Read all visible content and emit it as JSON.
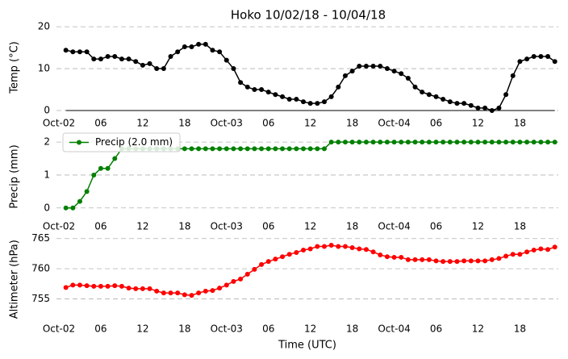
{
  "chart_data": [
    {
      "type": "line",
      "title": "Hoko 10/02/18 - 10/04/18",
      "ylabel": "Temp (°C)",
      "x": [
        1,
        2,
        3,
        4,
        5,
        6,
        7,
        8,
        9,
        10,
        11,
        12,
        13,
        14,
        15,
        16,
        17,
        18,
        19,
        20,
        21,
        22,
        23,
        24,
        25,
        26,
        27,
        28,
        29,
        30,
        31,
        32,
        33,
        34,
        35,
        36,
        37,
        38,
        39,
        40,
        41,
        42,
        43,
        44,
        45,
        46,
        47,
        48,
        49,
        50,
        51,
        52,
        53,
        54,
        55,
        56,
        57,
        58,
        59,
        60,
        61,
        62,
        63,
        64,
        65,
        66,
        67,
        68,
        69,
        70,
        71
      ],
      "series": [
        {
          "name": "Temp",
          "color": "#000000",
          "values": [
            14.4,
            14.0,
            14.0,
            14.0,
            12.3,
            12.3,
            12.9,
            12.9,
            12.3,
            12.3,
            11.7,
            10.8,
            11.2,
            10.0,
            10.0,
            12.9,
            14.0,
            15.2,
            15.2,
            15.8,
            15.8,
            14.4,
            14.0,
            12.0,
            10.0,
            6.7,
            5.6,
            5.0,
            5.0,
            4.4,
            3.8,
            3.3,
            2.7,
            2.7,
            2.1,
            1.7,
            1.7,
            2.1,
            3.3,
            5.6,
            8.3,
            9.4,
            10.6,
            10.6,
            10.6,
            10.6,
            10.0,
            9.4,
            8.8,
            7.7,
            5.6,
            4.4,
            3.8,
            3.3,
            2.7,
            2.1,
            1.7,
            1.7,
            1.2,
            0.6,
            0.6,
            0,
            0.6,
            3.8,
            8.3,
            11.7,
            12.3,
            12.9,
            12.9,
            12.9,
            11.7
          ]
        }
      ],
      "xlim": [
        0,
        71.5
      ],
      "xticks": [
        {
          "value": 0,
          "label": "Oct-02"
        },
        {
          "value": 6,
          "label": "06"
        },
        {
          "value": 12,
          "label": "12"
        },
        {
          "value": 18,
          "label": "18"
        },
        {
          "value": 24,
          "label": "Oct-03"
        },
        {
          "value": 30,
          "label": "06"
        },
        {
          "value": 36,
          "label": "12"
        },
        {
          "value": 42,
          "label": "18"
        },
        {
          "value": 48,
          "label": "Oct-04"
        },
        {
          "value": 54,
          "label": "06"
        },
        {
          "value": 60,
          "label": "12"
        },
        {
          "value": 66,
          "label": "18"
        }
      ],
      "ylim": [
        0,
        20.6
      ],
      "yticks": [
        0,
        10,
        20
      ],
      "grid": true
    },
    {
      "type": "line",
      "ylabel": "Precip (mm)",
      "legend": "upper left",
      "x": [
        1,
        2,
        3,
        4,
        5,
        6,
        7,
        8,
        9,
        10,
        11,
        12,
        13,
        14,
        15,
        16,
        17,
        18,
        19,
        20,
        21,
        22,
        23,
        24,
        25,
        26,
        27,
        28,
        29,
        30,
        31,
        32,
        33,
        34,
        35,
        36,
        37,
        38,
        39,
        40,
        41,
        42,
        43,
        44,
        45,
        46,
        47,
        48,
        49,
        50,
        51,
        52,
        53,
        54,
        55,
        56,
        57,
        58,
        59,
        60,
        61,
        62,
        63,
        64,
        65,
        66,
        67,
        68,
        69,
        70,
        71
      ],
      "series": [
        {
          "name": "Precip (2.0 mm)",
          "color": "#008000",
          "values": [
            0,
            0,
            0.2,
            0.5,
            1.0,
            1.2,
            1.2,
            1.5,
            1.8,
            1.8,
            1.8,
            1.8,
            1.8,
            1.8,
            1.8,
            1.8,
            1.8,
            1.8,
            1.8,
            1.8,
            1.8,
            1.8,
            1.8,
            1.8,
            1.8,
            1.8,
            1.8,
            1.8,
            1.8,
            1.8,
            1.8,
            1.8,
            1.8,
            1.8,
            1.8,
            1.8,
            1.8,
            1.8,
            2.0,
            2.0,
            2.0,
            2.0,
            2.0,
            2.0,
            2.0,
            2.0,
            2.0,
            2.0,
            2.0,
            2.0,
            2.0,
            2.0,
            2.0,
            2.0,
            2.0,
            2.0,
            2.0,
            2.0,
            2.0,
            2.0,
            2.0,
            2.0,
            2.0,
            2.0,
            2.0,
            2.0,
            2.0,
            2.0,
            2.0,
            2.0,
            2.0
          ]
        }
      ],
      "xlim": [
        0,
        71.5
      ],
      "xticks": [
        {
          "value": 0,
          "label": "Oct-02"
        },
        {
          "value": 6,
          "label": "06"
        },
        {
          "value": 12,
          "label": "12"
        },
        {
          "value": 18,
          "label": "18"
        },
        {
          "value": 24,
          "label": "Oct-03"
        },
        {
          "value": 30,
          "label": "06"
        },
        {
          "value": 36,
          "label": "12"
        },
        {
          "value": 42,
          "label": "18"
        },
        {
          "value": 48,
          "label": "Oct-04"
        },
        {
          "value": 54,
          "label": "06"
        },
        {
          "value": 60,
          "label": "12"
        },
        {
          "value": 66,
          "label": "18"
        }
      ],
      "ylim": [
        -0.3,
        2.2
      ],
      "yticks": [
        0,
        1,
        2
      ],
      "grid": true
    },
    {
      "type": "line",
      "ylabel": "Altimeter (hPa)",
      "xlabel": "Time (UTC)",
      "x": [
        1,
        2,
        3,
        4,
        5,
        6,
        7,
        8,
        9,
        10,
        11,
        12,
        13,
        14,
        15,
        16,
        17,
        18,
        19,
        20,
        21,
        22,
        23,
        24,
        25,
        26,
        27,
        28,
        29,
        30,
        31,
        32,
        33,
        34,
        35,
        36,
        37,
        38,
        39,
        40,
        41,
        42,
        43,
        44,
        45,
        46,
        47,
        48,
        49,
        50,
        51,
        52,
        53,
        54,
        55,
        56,
        57,
        58,
        59,
        60,
        61,
        62,
        63,
        64,
        65,
        66,
        67,
        68,
        69,
        70,
        71
      ],
      "series": [
        {
          "name": "Altimeter",
          "color": "#ff0000",
          "values": [
            756.9,
            757.3,
            757.3,
            757.2,
            757.1,
            757.1,
            757.1,
            757.2,
            757.1,
            756.8,
            756.7,
            756.7,
            756.7,
            756.3,
            756.0,
            756.0,
            756.0,
            755.7,
            755.6,
            756.0,
            756.3,
            756.4,
            756.8,
            757.3,
            757.9,
            758.3,
            759.1,
            759.9,
            760.7,
            761.2,
            761.6,
            762.0,
            762.4,
            762.7,
            763.1,
            763.3,
            763.7,
            763.7,
            763.9,
            763.7,
            763.7,
            763.5,
            763.3,
            763.2,
            762.8,
            762.3,
            762.0,
            761.9,
            761.9,
            761.5,
            761.5,
            761.5,
            761.5,
            761.3,
            761.2,
            761.2,
            761.2,
            761.3,
            761.3,
            761.3,
            761.3,
            761.5,
            761.7,
            762.1,
            762.4,
            762.4,
            762.8,
            763.1,
            763.3,
            763.2,
            763.6
          ]
        }
      ],
      "xlim": [
        0,
        71.5
      ],
      "xticks": [
        {
          "value": 0,
          "label": "Oct-02"
        },
        {
          "value": 6,
          "label": "06"
        },
        {
          "value": 12,
          "label": "12"
        },
        {
          "value": 18,
          "label": "18"
        },
        {
          "value": 24,
          "label": "Oct-03"
        },
        {
          "value": 30,
          "label": "06"
        },
        {
          "value": 36,
          "label": "12"
        },
        {
          "value": 42,
          "label": "18"
        },
        {
          "value": 48,
          "label": "Oct-04"
        },
        {
          "value": 54,
          "label": "06"
        },
        {
          "value": 60,
          "label": "12"
        },
        {
          "value": 66,
          "label": "18"
        }
      ],
      "ylim": [
        751,
        765.5
      ],
      "yticks": [
        755,
        760,
        765
      ],
      "grid": true
    }
  ]
}
